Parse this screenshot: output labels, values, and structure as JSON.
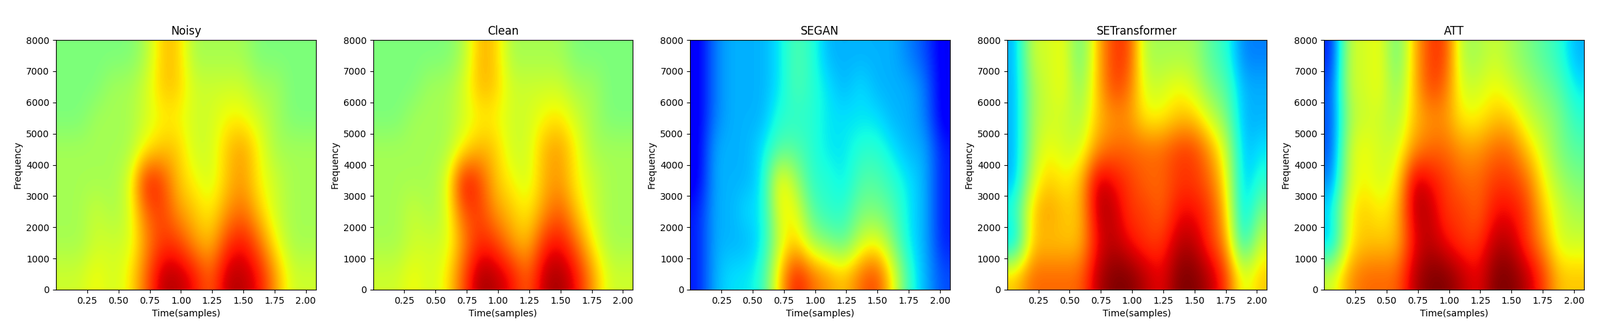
{
  "chart_data": [
    {
      "type": "heatmap",
      "title": "Noisy",
      "x_label": "Time(samples)",
      "y_label": "Frequency",
      "color": "jet",
      "xlim": [
        0,
        2.08
      ],
      "ylim": [
        0,
        8000
      ],
      "xticks": [
        0.25,
        0.5,
        0.75,
        1.0,
        1.25,
        1.5,
        1.75,
        2.0
      ],
      "xtick_labels": [
        "0.25",
        "0.50",
        "0.75",
        "1.00",
        "1.25",
        "1.50",
        "1.75",
        "2.00"
      ],
      "yticks": [
        0,
        1000,
        2000,
        3000,
        4000,
        5000,
        6000,
        7000,
        8000
      ],
      "color_range": [
        0,
        1
      ],
      "cells": [
        [
          0.6,
          0.6,
          0.65,
          0.6,
          0.65,
          0.8,
          0.95,
          0.95,
          0.9,
          0.8,
          0.95,
          0.95,
          0.9,
          0.75,
          0.6,
          0.6
        ],
        [
          0.55,
          0.55,
          0.6,
          0.6,
          0.6,
          0.75,
          0.85,
          0.85,
          0.75,
          0.7,
          0.85,
          0.9,
          0.8,
          0.65,
          0.55,
          0.55
        ],
        [
          0.55,
          0.55,
          0.6,
          0.55,
          0.6,
          0.8,
          0.85,
          0.75,
          0.7,
          0.65,
          0.75,
          0.8,
          0.7,
          0.6,
          0.55,
          0.55
        ],
        [
          0.55,
          0.55,
          0.55,
          0.55,
          0.6,
          0.9,
          0.85,
          0.7,
          0.65,
          0.6,
          0.7,
          0.75,
          0.65,
          0.6,
          0.55,
          0.55
        ],
        [
          0.55,
          0.55,
          0.55,
          0.55,
          0.55,
          0.65,
          0.7,
          0.7,
          0.6,
          0.6,
          0.7,
          0.75,
          0.65,
          0.55,
          0.55,
          0.55
        ],
        [
          0.5,
          0.5,
          0.55,
          0.55,
          0.55,
          0.6,
          0.65,
          0.65,
          0.6,
          0.6,
          0.65,
          0.65,
          0.6,
          0.55,
          0.5,
          0.5
        ],
        [
          0.5,
          0.5,
          0.5,
          0.55,
          0.55,
          0.6,
          0.7,
          0.7,
          0.6,
          0.6,
          0.6,
          0.6,
          0.55,
          0.55,
          0.5,
          0.5
        ],
        [
          0.5,
          0.5,
          0.5,
          0.5,
          0.5,
          0.55,
          0.7,
          0.7,
          0.55,
          0.55,
          0.55,
          0.55,
          0.5,
          0.5,
          0.5,
          0.5
        ]
      ]
    },
    {
      "type": "heatmap",
      "title": "Clean",
      "x_label": "Time(samples)",
      "y_label": "Frequency",
      "color": "jet",
      "xlim": [
        0,
        2.08
      ],
      "ylim": [
        0,
        8000
      ],
      "xticks": [
        0.25,
        0.5,
        0.75,
        1.0,
        1.25,
        1.5,
        1.75,
        2.0
      ],
      "xtick_labels": [
        "0.25",
        "0.50",
        "0.75",
        "1.00",
        "1.25",
        "1.50",
        "1.75",
        "2.00"
      ],
      "yticks": [
        0,
        1000,
        2000,
        3000,
        4000,
        5000,
        6000,
        7000,
        8000
      ],
      "color_range": [
        0,
        1
      ],
      "cells": [
        [
          0.6,
          0.6,
          0.65,
          0.6,
          0.65,
          0.82,
          0.97,
          0.95,
          0.9,
          0.8,
          0.95,
          0.97,
          0.9,
          0.75,
          0.6,
          0.6
        ],
        [
          0.55,
          0.55,
          0.6,
          0.6,
          0.6,
          0.75,
          0.87,
          0.85,
          0.75,
          0.7,
          0.87,
          0.9,
          0.8,
          0.65,
          0.55,
          0.55
        ],
        [
          0.55,
          0.55,
          0.6,
          0.55,
          0.6,
          0.82,
          0.85,
          0.75,
          0.7,
          0.65,
          0.75,
          0.82,
          0.7,
          0.6,
          0.55,
          0.55
        ],
        [
          0.55,
          0.55,
          0.55,
          0.55,
          0.6,
          0.92,
          0.85,
          0.7,
          0.65,
          0.6,
          0.72,
          0.75,
          0.65,
          0.6,
          0.55,
          0.55
        ],
        [
          0.55,
          0.55,
          0.55,
          0.55,
          0.55,
          0.65,
          0.72,
          0.7,
          0.6,
          0.6,
          0.72,
          0.75,
          0.65,
          0.55,
          0.55,
          0.55
        ],
        [
          0.5,
          0.5,
          0.55,
          0.55,
          0.55,
          0.6,
          0.65,
          0.65,
          0.6,
          0.6,
          0.65,
          0.67,
          0.6,
          0.55,
          0.5,
          0.5
        ],
        [
          0.5,
          0.5,
          0.5,
          0.55,
          0.55,
          0.6,
          0.72,
          0.7,
          0.6,
          0.6,
          0.6,
          0.6,
          0.55,
          0.55,
          0.5,
          0.5
        ],
        [
          0.5,
          0.5,
          0.5,
          0.5,
          0.5,
          0.55,
          0.72,
          0.7,
          0.55,
          0.55,
          0.55,
          0.55,
          0.5,
          0.5,
          0.5,
          0.5
        ]
      ]
    },
    {
      "type": "heatmap",
      "title": "SEGAN",
      "x_label": "Time(samples)",
      "y_label": "Frequency",
      "color": "jet",
      "xlim": [
        0,
        2.08
      ],
      "ylim": [
        0,
        8000
      ],
      "xticks": [
        0.25,
        0.5,
        0.75,
        1.0,
        1.25,
        1.5,
        1.75,
        2.0
      ],
      "xtick_labels": [
        "0.25",
        "0.50",
        "0.75",
        "1.00",
        "1.25",
        "1.50",
        "1.75",
        "2.00"
      ],
      "yticks": [
        0,
        1000,
        2000,
        3000,
        4000,
        5000,
        6000,
        7000,
        8000
      ],
      "color_range": [
        0,
        1
      ],
      "cells": [
        [
          0.15,
          0.3,
          0.35,
          0.35,
          0.4,
          0.7,
          0.9,
          0.8,
          0.75,
          0.7,
          0.8,
          0.85,
          0.65,
          0.4,
          0.3,
          0.2
        ],
        [
          0.15,
          0.3,
          0.3,
          0.3,
          0.35,
          0.6,
          0.7,
          0.55,
          0.5,
          0.45,
          0.6,
          0.65,
          0.5,
          0.35,
          0.3,
          0.15
        ],
        [
          0.15,
          0.3,
          0.3,
          0.35,
          0.35,
          0.65,
          0.65,
          0.45,
          0.4,
          0.4,
          0.5,
          0.5,
          0.45,
          0.35,
          0.3,
          0.15
        ],
        [
          0.1,
          0.3,
          0.3,
          0.3,
          0.35,
          0.7,
          0.55,
          0.4,
          0.4,
          0.35,
          0.45,
          0.45,
          0.4,
          0.35,
          0.3,
          0.15
        ],
        [
          0.1,
          0.3,
          0.3,
          0.3,
          0.35,
          0.45,
          0.45,
          0.4,
          0.35,
          0.35,
          0.4,
          0.4,
          0.35,
          0.3,
          0.3,
          0.15
        ],
        [
          0.1,
          0.25,
          0.3,
          0.3,
          0.3,
          0.4,
          0.4,
          0.4,
          0.35,
          0.35,
          0.35,
          0.35,
          0.3,
          0.3,
          0.25,
          0.1
        ],
        [
          0.1,
          0.25,
          0.3,
          0.3,
          0.3,
          0.35,
          0.45,
          0.4,
          0.35,
          0.3,
          0.35,
          0.3,
          0.3,
          0.3,
          0.25,
          0.1
        ],
        [
          0.1,
          0.25,
          0.3,
          0.3,
          0.3,
          0.35,
          0.45,
          0.4,
          0.3,
          0.3,
          0.3,
          0.3,
          0.3,
          0.25,
          0.2,
          0.1
        ]
      ]
    },
    {
      "type": "heatmap",
      "title": "SETransformer",
      "x_label": "Time(samples)",
      "y_label": "Frequency",
      "color": "jet",
      "xlim": [
        0,
        2.08
      ],
      "ylim": [
        0,
        8000
      ],
      "xticks": [
        0.25,
        0.5,
        0.75,
        1.0,
        1.25,
        1.5,
        1.75,
        2.0
      ],
      "xtick_labels": [
        "0.25",
        "0.50",
        "0.75",
        "1.00",
        "1.25",
        "1.50",
        "1.75",
        "2.00"
      ],
      "yticks": [
        0,
        1000,
        2000,
        3000,
        4000,
        5000,
        6000,
        7000,
        8000
      ],
      "color_range": [
        0,
        1
      ],
      "cells": [
        [
          0.7,
          0.8,
          0.8,
          0.8,
          0.8,
          0.95,
          1.0,
          1.0,
          0.95,
          0.9,
          1.0,
          1.0,
          0.95,
          0.85,
          0.6,
          0.7
        ],
        [
          0.3,
          0.7,
          0.7,
          0.7,
          0.7,
          0.9,
          0.95,
          0.9,
          0.85,
          0.85,
          0.95,
          0.95,
          0.85,
          0.75,
          0.35,
          0.6
        ],
        [
          0.4,
          0.7,
          0.75,
          0.7,
          0.7,
          0.95,
          0.95,
          0.85,
          0.85,
          0.8,
          0.9,
          0.9,
          0.85,
          0.7,
          0.3,
          0.5
        ],
        [
          0.3,
          0.6,
          0.7,
          0.65,
          0.7,
          0.95,
          0.9,
          0.85,
          0.8,
          0.8,
          0.85,
          0.85,
          0.8,
          0.65,
          0.3,
          0.4
        ],
        [
          0.3,
          0.55,
          0.65,
          0.6,
          0.6,
          0.75,
          0.8,
          0.8,
          0.8,
          0.8,
          0.85,
          0.85,
          0.75,
          0.6,
          0.3,
          0.35
        ],
        [
          0.3,
          0.55,
          0.6,
          0.6,
          0.55,
          0.7,
          0.75,
          0.75,
          0.65,
          0.65,
          0.7,
          0.7,
          0.6,
          0.5,
          0.3,
          0.3
        ],
        [
          0.3,
          0.55,
          0.6,
          0.65,
          0.5,
          0.7,
          0.85,
          0.8,
          0.6,
          0.6,
          0.65,
          0.6,
          0.5,
          0.45,
          0.3,
          0.3
        ],
        [
          0.3,
          0.6,
          0.6,
          0.65,
          0.45,
          0.7,
          0.85,
          0.85,
          0.55,
          0.55,
          0.55,
          0.55,
          0.45,
          0.4,
          0.25,
          0.25
        ]
      ]
    },
    {
      "type": "heatmap",
      "title": "ATT",
      "x_label": "Time(samples)",
      "y_label": "Frequency",
      "color": "jet",
      "xlim": [
        0,
        2.08
      ],
      "ylim": [
        0,
        8000
      ],
      "xticks": [
        0.25,
        0.5,
        0.75,
        1.0,
        1.25,
        1.5,
        1.75,
        2.0
      ],
      "xtick_labels": [
        "0.25",
        "0.50",
        "0.75",
        "1.00",
        "1.25",
        "1.50",
        "1.75",
        "2.00"
      ],
      "yticks": [
        0,
        1000,
        2000,
        3000,
        4000,
        5000,
        6000,
        7000,
        8000
      ],
      "color_range": [
        0,
        1
      ],
      "cells": [
        [
          0.6,
          0.75,
          0.8,
          0.8,
          0.8,
          0.95,
          1.0,
          1.0,
          0.95,
          0.9,
          1.0,
          1.0,
          0.95,
          0.85,
          0.7,
          0.7
        ],
        [
          0.3,
          0.65,
          0.7,
          0.7,
          0.7,
          0.9,
          0.95,
          0.9,
          0.85,
          0.85,
          0.95,
          0.95,
          0.85,
          0.75,
          0.6,
          0.6
        ],
        [
          0.35,
          0.65,
          0.7,
          0.65,
          0.7,
          0.95,
          0.95,
          0.85,
          0.85,
          0.8,
          0.9,
          0.9,
          0.85,
          0.7,
          0.6,
          0.55
        ],
        [
          0.25,
          0.6,
          0.65,
          0.6,
          0.65,
          0.95,
          0.9,
          0.85,
          0.8,
          0.8,
          0.85,
          0.85,
          0.8,
          0.65,
          0.55,
          0.5
        ],
        [
          0.2,
          0.6,
          0.65,
          0.6,
          0.6,
          0.75,
          0.8,
          0.8,
          0.75,
          0.75,
          0.8,
          0.8,
          0.7,
          0.6,
          0.5,
          0.45
        ],
        [
          0.2,
          0.55,
          0.6,
          0.6,
          0.55,
          0.7,
          0.75,
          0.75,
          0.65,
          0.65,
          0.7,
          0.7,
          0.6,
          0.55,
          0.5,
          0.4
        ],
        [
          0.2,
          0.6,
          0.6,
          0.65,
          0.5,
          0.7,
          0.85,
          0.8,
          0.6,
          0.6,
          0.65,
          0.6,
          0.55,
          0.5,
          0.45,
          0.35
        ],
        [
          0.15,
          0.6,
          0.6,
          0.65,
          0.45,
          0.7,
          0.85,
          0.85,
          0.55,
          0.55,
          0.6,
          0.55,
          0.5,
          0.45,
          0.4,
          0.3
        ]
      ]
    }
  ]
}
